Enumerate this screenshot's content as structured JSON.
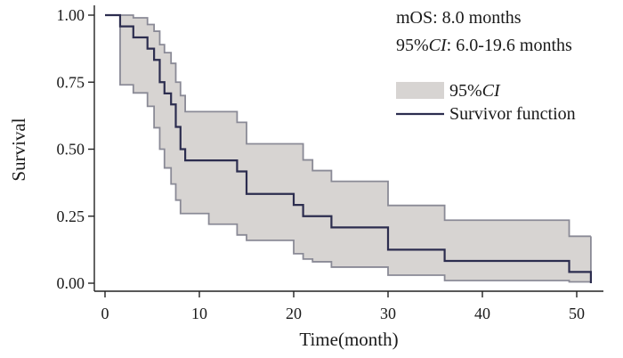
{
  "chart_data": {
    "type": "line",
    "title": "",
    "xlabel": "Time(month)",
    "ylabel": "Survival",
    "xlim": [
      0,
      52
    ],
    "ylim": [
      0,
      1
    ],
    "x_ticks": [
      0,
      10,
      20,
      30,
      40,
      50
    ],
    "x_tick_labels": [
      "0",
      "10",
      "20",
      "30",
      "40",
      "50"
    ],
    "y_ticks": [
      0,
      0.25,
      0.5,
      0.75,
      1.0
    ],
    "y_tick_labels": [
      "0.00",
      "0.25",
      "0.50",
      "0.75",
      "1.00"
    ],
    "grid": false,
    "annotations": {
      "mos": "mOS: 8.0 months",
      "ci_prefix": "95%",
      "ci_italic": "CI",
      "ci_suffix": ": 6.0-19.6 months"
    },
    "legend": {
      "position": "top-right",
      "ci_prefix": "95%",
      "ci_italic": "CI",
      "survivor_label": "Survivor function"
    },
    "colors": {
      "band_fill": "#d7d4d2",
      "band_stroke": "#8a8a96",
      "survivor_line": "#2c2d4f"
    },
    "series": [
      {
        "name": "Survivor function",
        "style": "step",
        "x": [
          0,
          1.6,
          3,
          4.5,
          5.2,
          5.8,
          6.3,
          7,
          7.5,
          8,
          8.5,
          14,
          15,
          20,
          21,
          22,
          24,
          30,
          36,
          49.2,
          51.5
        ],
        "y": [
          1.0,
          0.958,
          0.917,
          0.875,
          0.833,
          0.75,
          0.708,
          0.667,
          0.583,
          0.5,
          0.458,
          0.417,
          0.333,
          0.292,
          0.25,
          0.25,
          0.208,
          0.125,
          0.083,
          0.042,
          0.0
        ]
      },
      {
        "name": "95%CI upper",
        "style": "step",
        "x": [
          0,
          1.6,
          3,
          4.5,
          5.2,
          5.8,
          6.3,
          7,
          7.5,
          8,
          8.5,
          11,
          14,
          15,
          20,
          21,
          22,
          24,
          30,
          36,
          49.2,
          51.5
        ],
        "y": [
          1.0,
          1.0,
          0.99,
          0.965,
          0.94,
          0.89,
          0.86,
          0.82,
          0.75,
          0.7,
          0.64,
          0.64,
          0.6,
          0.52,
          0.52,
          0.46,
          0.42,
          0.38,
          0.29,
          0.235,
          0.175,
          0.175
        ]
      },
      {
        "name": "95%CI lower",
        "style": "step",
        "x": [
          0,
          1.6,
          3,
          4.5,
          5.2,
          5.8,
          6.3,
          7,
          7.5,
          8,
          8.5,
          11,
          14,
          15,
          20,
          21,
          22,
          24,
          30,
          36,
          49.2,
          51.5
        ],
        "y": [
          1.0,
          0.74,
          0.71,
          0.66,
          0.58,
          0.5,
          0.43,
          0.37,
          0.31,
          0.26,
          0.26,
          0.22,
          0.18,
          0.16,
          0.11,
          0.09,
          0.08,
          0.06,
          0.03,
          0.01,
          0.005,
          0.005
        ]
      }
    ]
  }
}
